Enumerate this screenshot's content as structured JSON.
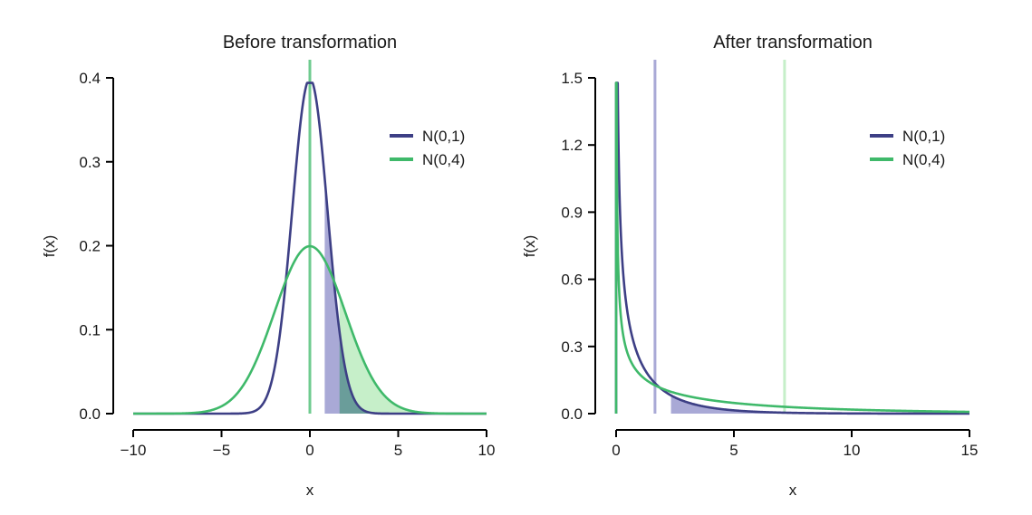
{
  "colors": {
    "n01": "#3d3f85",
    "n04": "#3fb96a",
    "n01_fill": "#a9a9d6",
    "n04_fill": "#c6efc9",
    "overlap_fill": "#5f9b8f",
    "axis": "#000000"
  },
  "chart_data": [
    {
      "type": "line",
      "title": "Before transformation",
      "xlabel": "x",
      "ylabel": "f(x)",
      "xlim": [
        -10,
        10
      ],
      "ylim": [
        0,
        0.4
      ],
      "xticks": [
        -10,
        -5,
        0,
        5,
        10
      ],
      "xtick_labels": [
        "−10",
        "−5",
        "0",
        "5",
        "10"
      ],
      "yticks": [
        0,
        0.1,
        0.2,
        0.3,
        0.4
      ],
      "ytick_labels": [
        "0.0",
        "0.1",
        "0.2",
        "0.3",
        "0.4"
      ],
      "grid": false,
      "legend_position": "top-right",
      "series": [
        {
          "name": "N(0,1)",
          "distribution": "normal",
          "sd": 1,
          "color": "n01",
          "shade_from": 0.84,
          "shade_color": "n01_fill"
        },
        {
          "name": "N(0,4)",
          "distribution": "normal",
          "sd": 2,
          "color": "n04",
          "shade_from": 1.68,
          "shade_color": "n04_fill"
        }
      ],
      "vlines": [
        {
          "x": 0,
          "color": "n04"
        }
      ]
    },
    {
      "type": "line",
      "title": "After transformation",
      "xlabel": "x",
      "ylabel": "f(x)",
      "xlim": [
        0,
        15
      ],
      "ylim": [
        0,
        1.5
      ],
      "xticks": [
        0,
        5,
        10,
        15
      ],
      "xtick_labels": [
        "0",
        "5",
        "10",
        "15"
      ],
      "yticks": [
        0,
        0.3,
        0.6,
        0.9,
        1.2,
        1.5
      ],
      "ytick_labels": [
        "0.0",
        "0.3",
        "0.6",
        "0.9",
        "1.2",
        "1.5"
      ],
      "grid": false,
      "legend_position": "top-right",
      "series": [
        {
          "name": "N(0,1)",
          "distribution": "chi-square-scaled",
          "sd": 1,
          "color": "n01",
          "shade_from": 2.33,
          "shade_color": "n01_fill"
        },
        {
          "name": "N(0,4)",
          "distribution": "chi-square-scaled",
          "sd": 2,
          "color": "n04"
        }
      ],
      "vlines": [
        {
          "x": 1.65,
          "color": "n01_fill"
        },
        {
          "x": 7.15,
          "color": "n04_fill"
        }
      ]
    }
  ]
}
